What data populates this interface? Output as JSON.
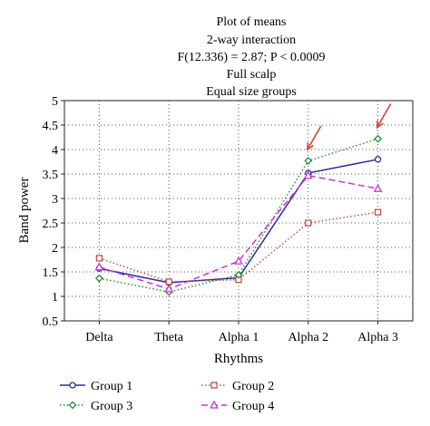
{
  "chart_data": {
    "type": "line",
    "title_lines": [
      "Plot of means",
      "2-way interaction",
      "F(12.336) = 2.87; P < 0.0009",
      "Full scalp",
      "Equal size groups"
    ],
    "xlabel": "Rhythms",
    "ylabel": "Band power",
    "categories": [
      "Delta",
      "Theta",
      "Alpha 1",
      "Alpha 2",
      "Alpha 3"
    ],
    "ylim": [
      0.5,
      5
    ],
    "yticks": [
      "0.5",
      "1",
      "1.5",
      "2",
      "2.5",
      "3",
      "3.5",
      "4",
      "4.5",
      "5"
    ],
    "grid": true,
    "legend_position": "bottom",
    "series": [
      {
        "name": "Group 1",
        "color": "#2b2b9e",
        "dash": "solid",
        "marker": "circle",
        "values": [
          1.57,
          1.28,
          1.38,
          3.52,
          3.8
        ]
      },
      {
        "name": "Group 2",
        "color": "#c0504d",
        "dash": "dotted",
        "marker": "square",
        "values": [
          1.78,
          1.3,
          1.34,
          2.5,
          2.72
        ]
      },
      {
        "name": "Group 3",
        "color": "#2e8b3a",
        "dash": "dotted",
        "marker": "diamond",
        "values": [
          1.37,
          1.09,
          1.44,
          3.77,
          4.22
        ]
      },
      {
        "name": "Group 4",
        "color": "#cc33cc",
        "dash": "dashed",
        "marker": "triangle",
        "values": [
          1.6,
          1.15,
          1.72,
          3.47,
          3.2
        ]
      }
    ],
    "annotations": [
      {
        "type": "arrow",
        "color": "#d8423a",
        "target_category": "Alpha 2",
        "target_value": 4.0
      },
      {
        "type": "arrow",
        "color": "#d8423a",
        "target_category": "Alpha 3",
        "target_value": 4.45
      }
    ]
  }
}
